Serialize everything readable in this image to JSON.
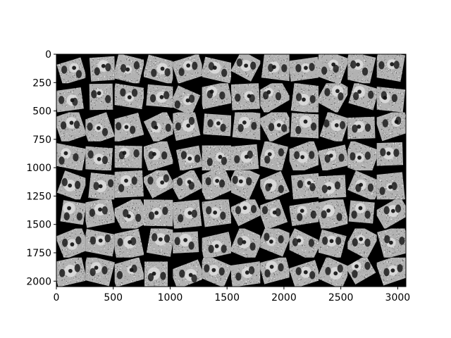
{
  "image": {
    "description_free": true,
    "grid": {
      "rows": 8,
      "cols": 12
    },
    "colormap": "gray",
    "background": "#000000"
  },
  "axes": {
    "x_extent": [
      0,
      3072
    ],
    "y_extent": [
      0,
      2048
    ],
    "y_inverted": true,
    "x_ticks": [
      {
        "value": 0,
        "label": "0"
      },
      {
        "value": 500,
        "label": "500"
      },
      {
        "value": 1000,
        "label": "1000"
      },
      {
        "value": 1500,
        "label": "1500"
      },
      {
        "value": 2000,
        "label": "2000"
      },
      {
        "value": 2500,
        "label": "2500"
      },
      {
        "value": 3000,
        "label": "3000"
      }
    ],
    "y_ticks": [
      {
        "value": 0,
        "label": "0"
      },
      {
        "value": 250,
        "label": "250"
      },
      {
        "value": 500,
        "label": "500"
      },
      {
        "value": 750,
        "label": "750"
      },
      {
        "value": 1000,
        "label": "1000"
      },
      {
        "value": 1250,
        "label": "1250"
      },
      {
        "value": 1500,
        "label": "1500"
      },
      {
        "value": 1750,
        "label": "1750"
      },
      {
        "value": 2000,
        "label": "2000"
      }
    ]
  }
}
